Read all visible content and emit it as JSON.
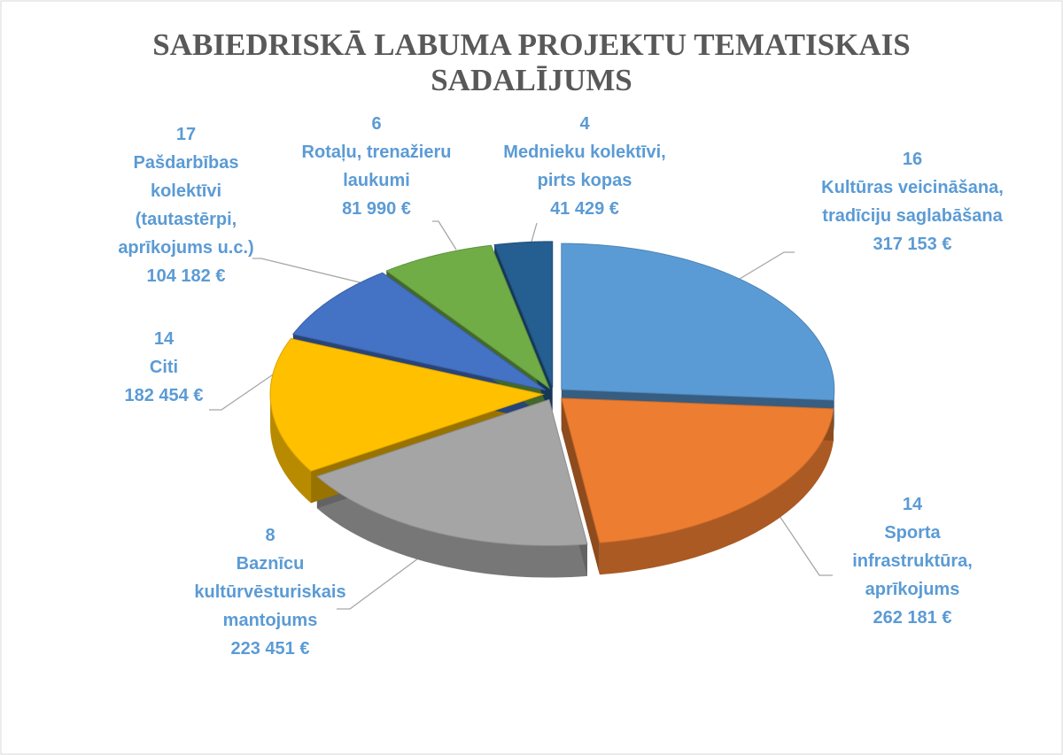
{
  "chart_data": {
    "type": "pie",
    "title": "SABIEDRISKĀ LABUMA PROJEKTU TEMATISKAIS\nSADALĪJUMS",
    "categories": [
      "Kultūras veicināšana,\ntradīciju saglabāšana",
      "Sporta\ninfrastruktūra,\naprīkojums",
      "Baznīcu\nkultūrvēsturiskais\nmantojums",
      "Citi",
      "Pašdarbības\nkolektīvi\n(tautastērpi,\naprīkojums u.c.)",
      "Rotaļu, trenažieru\nlaukumi",
      "Mednieku kolektīvi,\npirts kopas"
    ],
    "counts": [
      16,
      14,
      8,
      14,
      17,
      6,
      4
    ],
    "values": [
      317153,
      262181,
      223451,
      182454,
      104182,
      81990,
      41429
    ],
    "value_labels": [
      "317 153 €",
      "262 181 €",
      "223 451 €",
      "182 454 €",
      "104 182 €",
      "81 990 €",
      "41 429 €"
    ],
    "colors": [
      "#5b9bd5",
      "#ed7d31",
      "#a5a5a5",
      "#ffc000",
      "#4472c4",
      "#70ad47",
      "#255e91"
    ]
  }
}
